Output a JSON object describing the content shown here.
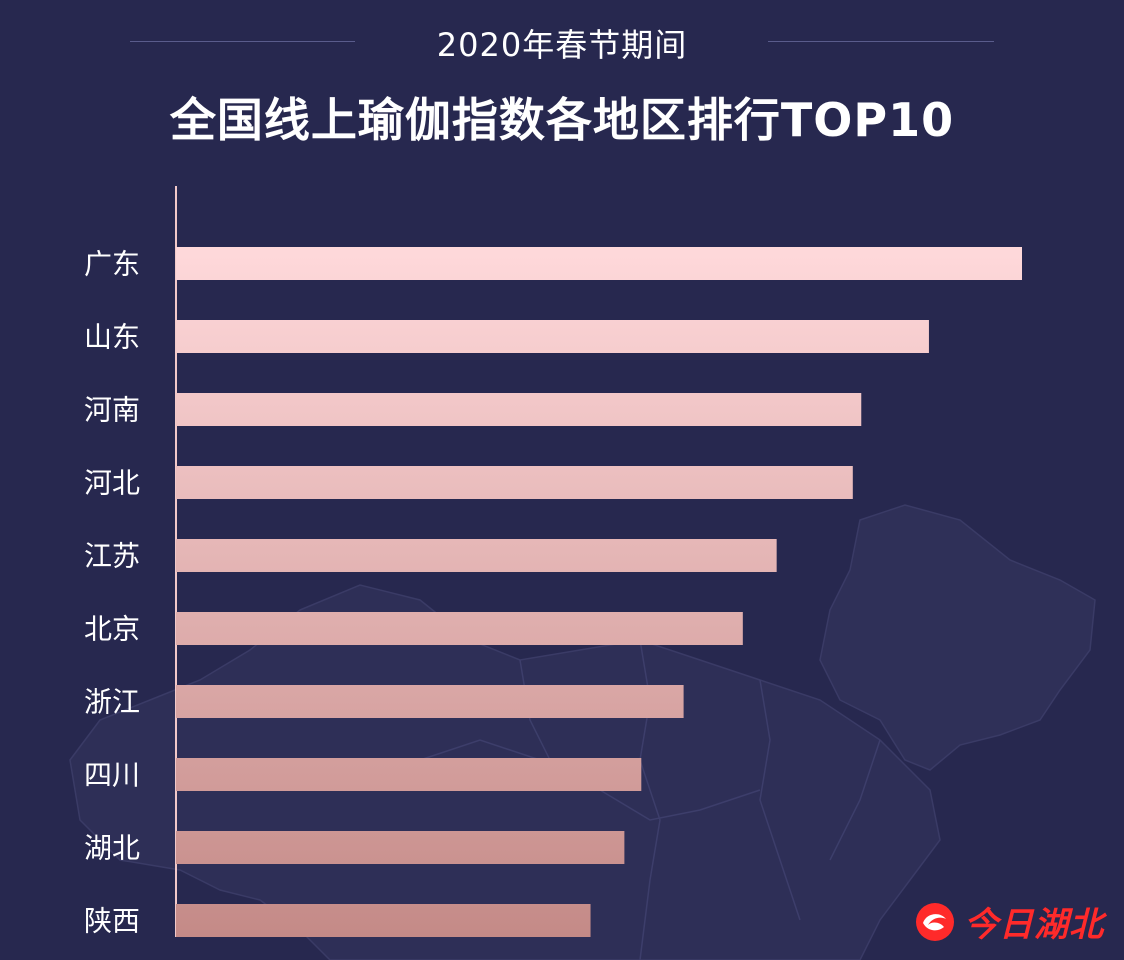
{
  "header": {
    "subtitle": "2020年春节期间",
    "title": "全国线上瑜伽指数各地区排行TOP10"
  },
  "chart_data": {
    "type": "bar",
    "orientation": "horizontal",
    "title": "全国线上瑜伽指数各地区排行TOP10",
    "subtitle": "2020年春节期间",
    "categories": [
      "广东",
      "山东",
      "河南",
      "河北",
      "江苏",
      "北京",
      "浙江",
      "四川",
      "湖北",
      "陕西"
    ],
    "values": [
      100,
      89,
      81,
      80,
      71,
      67,
      60,
      55,
      53,
      49
    ],
    "xlim": [
      0,
      100
    ],
    "xlabel": "",
    "ylabel": "",
    "grid": false,
    "value_labels_shown": false,
    "bar_color_start": "#ffd9db",
    "bar_color_end": "#c48a87"
  },
  "watermark": {
    "text": "今日湖北",
    "color": "#ff2a2a"
  },
  "colors": {
    "background": "#27284f",
    "axis": "#f2c9c9",
    "text": "#ffffff"
  }
}
